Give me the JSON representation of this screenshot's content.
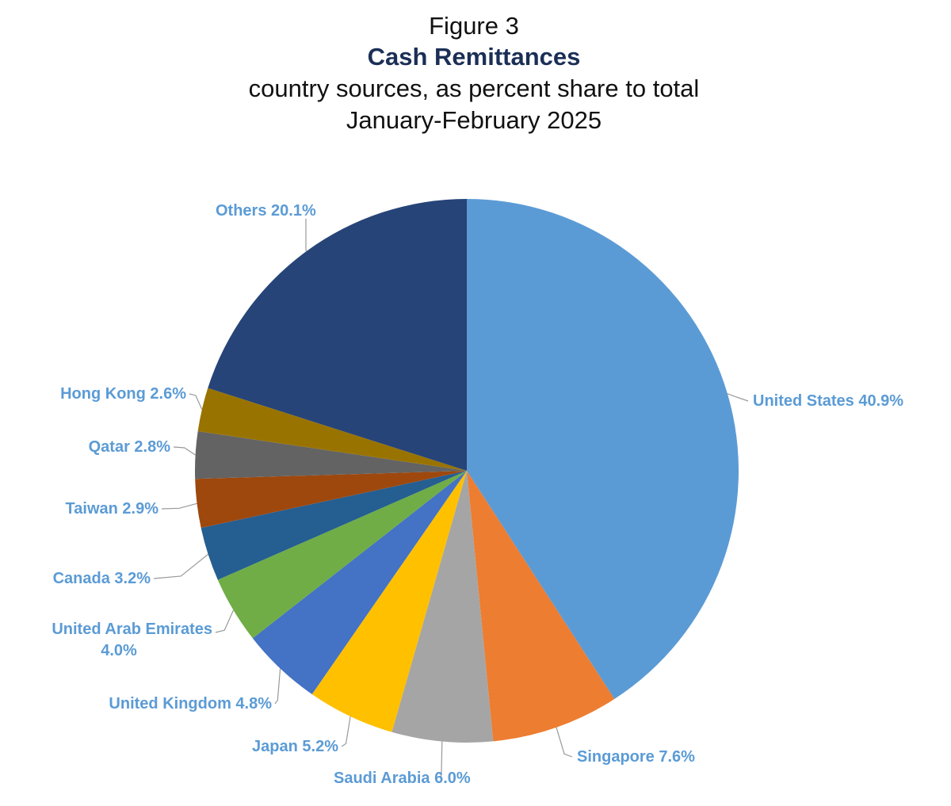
{
  "figure_label": "Figure 3",
  "title": "Cash Remittances",
  "subtitle_line1": "country sources, as percent share to total",
  "subtitle_line2": "January-February 2025",
  "label_color": "#5b9bd5",
  "chart_data": {
    "type": "pie",
    "title": "Cash Remittances",
    "start": "12 o'clock",
    "direction": "clockwise",
    "slices": [
      {
        "label": "United States",
        "value": 40.9,
        "display": "United States 40.9%",
        "color": "#5b9bd5"
      },
      {
        "label": "Singapore",
        "value": 7.6,
        "display": "Singapore 7.6%",
        "color": "#ed7d31"
      },
      {
        "label": "Saudi Arabia",
        "value": 6.0,
        "display": "Saudi Arabia 6.0%",
        "color": "#a5a5a5"
      },
      {
        "label": "Japan",
        "value": 5.2,
        "display": "Japan 5.2%",
        "color": "#ffc000"
      },
      {
        "label": "United Kingdom",
        "value": 4.8,
        "display": "United Kingdom 4.8%",
        "color": "#4472c4"
      },
      {
        "label": "United Arab Emirates",
        "value": 4.0,
        "display": "United Arab Emirates 4.0%",
        "display_lines": [
          "United Arab Emirates",
          "4.0%"
        ],
        "color": "#70ad47"
      },
      {
        "label": "Canada",
        "value": 3.2,
        "display": "Canada 3.2%",
        "color": "#255e91"
      },
      {
        "label": "Taiwan",
        "value": 2.9,
        "display": "Taiwan 2.9%",
        "color": "#9e480e"
      },
      {
        "label": "Qatar",
        "value": 2.8,
        "display": "Qatar 2.8%",
        "color": "#636363"
      },
      {
        "label": "Hong Kong",
        "value": 2.6,
        "display": "Hong Kong 2.6%",
        "color": "#997300"
      },
      {
        "label": "Others",
        "value": 20.1,
        "display": "Others 20.1%",
        "color": "#264478"
      }
    ]
  }
}
